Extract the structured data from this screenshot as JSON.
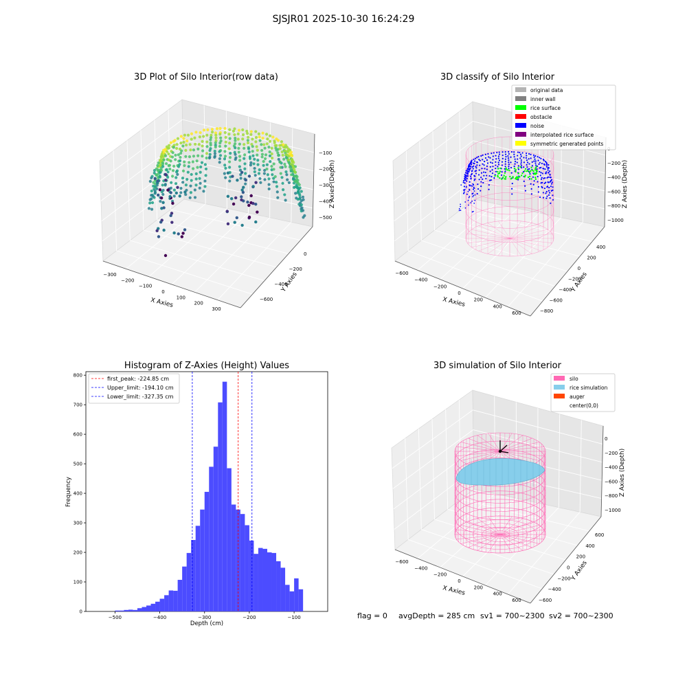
{
  "suptitle": "SJSJR01 2025-10-30 16:24:29",
  "status_line": {
    "flag": "flag = 0",
    "avg_depth": "avgDepth = 285 cm",
    "sv1": "sv1 = 700~2300",
    "sv2": "sv2 = 700~2300"
  },
  "colors": {
    "histogram_bar": "#4c4cff",
    "first_peak": "#ff0000",
    "limits": "#0000ff",
    "silo": "#ff69b4",
    "rice_simulation": "#87ceeb",
    "auger": "#ff4500",
    "rice_surface": "#00ff00",
    "noise": "#0000ff",
    "original_data": "#b4b4b4",
    "inner_wall": "#808080",
    "obstacle": "#ff0000",
    "interpolated": "#800080",
    "symmetric": "#ffff00"
  },
  "chart_data": [
    {
      "type": "scatter",
      "dim": "3d",
      "title": "3D Plot of Silo Interior(row data)",
      "xlabel": "X Axies",
      "ylabel": "Y Axies",
      "zlabel": "Z Axies (Depth)",
      "xticks": [
        "−300",
        "−200",
        "−100",
        "0",
        "100",
        "200",
        "300"
      ],
      "yticks": [
        "0",
        "−200",
        "−400",
        "−600"
      ],
      "zticks": [
        "−100",
        "−200",
        "−300",
        "−400",
        "−500"
      ],
      "colormap": "viridis"
    },
    {
      "type": "scatter",
      "dim": "3d",
      "title": "3D classify of Silo Interior",
      "xlabel": "X Axies",
      "ylabel": "Y Axies",
      "zlabel": "Z Axies (Depth)",
      "xticks": [
        "−600",
        "−400",
        "−200",
        "0",
        "200",
        "400",
        "600"
      ],
      "yticks": [
        "400",
        "200",
        "0",
        "−200",
        "−400",
        "−600",
        "−800"
      ],
      "zticks": [
        "0",
        "−200",
        "−400",
        "−600",
        "−800",
        "−1000"
      ],
      "legend": [
        {
          "name": "original data",
          "color": "#b4b4b4"
        },
        {
          "name": "inner wall",
          "color": "#808080"
        },
        {
          "name": "rice surface",
          "color": "#00ff00"
        },
        {
          "name": "obstacle",
          "color": "#ff0000"
        },
        {
          "name": "noise",
          "color": "#0000ff"
        },
        {
          "name": "interpolated rice surface",
          "color": "#800080"
        },
        {
          "name": "symmetric generated points",
          "color": "#ffff00"
        }
      ],
      "legend_loc": "upper right"
    },
    {
      "type": "bar",
      "title": "Histogram of Z-Axies (Height) Values",
      "xlabel": "Depth (cm)",
      "ylabel": "Frequency",
      "xlim": [
        -565,
        -25
      ],
      "ylim": [
        0,
        812
      ],
      "xticks": [
        -500,
        -400,
        -300,
        -200,
        -100
      ],
      "xtick_labels": [
        "−500",
        "−400",
        "−300",
        "−200",
        "−100"
      ],
      "yticks": [
        0,
        100,
        200,
        300,
        400,
        500,
        600,
        700,
        800
      ],
      "bin_width": 10,
      "bin_edges_start": -520,
      "values": [
        0,
        0,
        3,
        3,
        5,
        6,
        5,
        11,
        15,
        20,
        26,
        33,
        43,
        55,
        71,
        70,
        107,
        152,
        198,
        242,
        290,
        345,
        405,
        490,
        558,
        708,
        778,
        485,
        362,
        345,
        330,
        292,
        240,
        195,
        215,
        212,
        200,
        198,
        170,
        148,
        90,
        68,
        112,
        75
      ],
      "lines": [
        {
          "label": "first_peak: -224.85 cm",
          "x": -224.85,
          "color": "#ff0000"
        },
        {
          "label": "Upper_limit: -194.10 cm",
          "x": -194.1,
          "color": "#0000ff"
        },
        {
          "label": "Lower_limit: -327.35 cm",
          "x": -327.35,
          "color": "#0000ff"
        }
      ],
      "legend_loc": "upper left"
    },
    {
      "type": "surface",
      "dim": "3d",
      "title": "3D simulation of Silo Interior",
      "xlabel": "X Axies",
      "ylabel": "Y Axies",
      "zlabel": "Z Axies (Depth)",
      "xticks": [
        "−600",
        "−400",
        "−200",
        "0",
        "200",
        "400",
        "600"
      ],
      "yticks": [
        "600",
        "400",
        "200",
        "0",
        "−200",
        "−400",
        "−600"
      ],
      "zticks": [
        "0",
        "−200",
        "−400",
        "−600",
        "−800",
        "−1000"
      ],
      "legend": [
        {
          "name": "silo",
          "color": "#ff69b4"
        },
        {
          "name": "rice simulation",
          "color": "#87ceeb"
        },
        {
          "name": "auger",
          "color": "#ff4500"
        },
        {
          "name": "center(0,0)",
          "color": ""
        }
      ],
      "legend_loc": "upper right"
    }
  ]
}
